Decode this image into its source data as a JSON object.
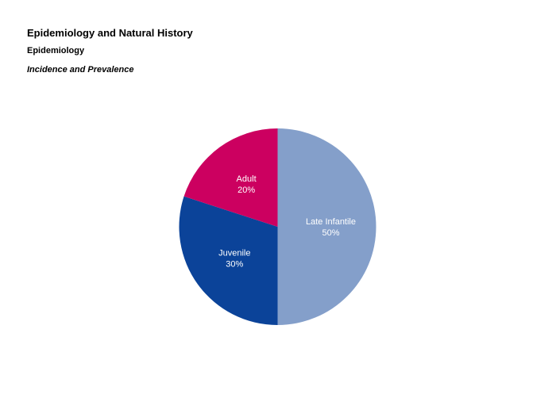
{
  "header": {
    "title": "Epidemiology and Natural History",
    "section": "Epidemiology",
    "subsection": "Incidence and Prevalence"
  },
  "chart_data": {
    "type": "pie",
    "title": "",
    "slices": [
      {
        "label": "Late Infantile",
        "value": 50,
        "value_label": "50%",
        "color": "#849fca"
      },
      {
        "label": "Juvenile",
        "value": 30,
        "value_label": "30%",
        "color": "#0b4399"
      },
      {
        "label": "Adult",
        "value": 20,
        "value_label": "20%",
        "color": "#cc0060"
      }
    ],
    "start_angle": "12 o'clock",
    "direction": "clockwise",
    "legend": "none",
    "labels_inside": true
  }
}
